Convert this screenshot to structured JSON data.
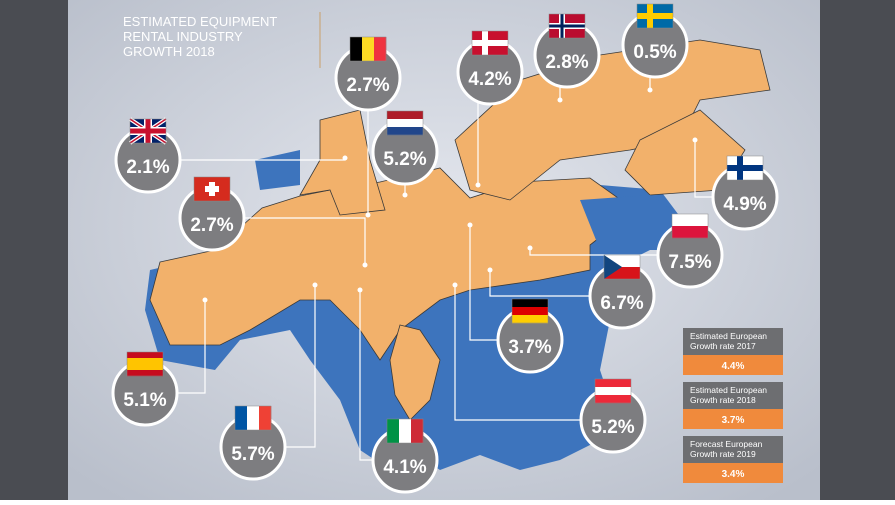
{
  "title": {
    "lines": [
      "ESTIMATED EQUIPMENT",
      "RENTAL INDUSTRY",
      "GROWTH 2018"
    ]
  },
  "markers": [
    {
      "value": "2.7%"
    },
    {
      "value": "4.2%"
    },
    {
      "value": "2.8%"
    },
    {
      "value": "0.5%"
    },
    {
      "value": "2.1%"
    },
    {
      "value": "5.2%"
    },
    {
      "value": "2.7%"
    },
    {
      "value": "4.9%"
    },
    {
      "value": "7.5%"
    },
    {
      "value": "6.7%"
    },
    {
      "value": "3.7%"
    },
    {
      "value": "5.1%"
    },
    {
      "value": "5.7%"
    },
    {
      "value": "4.1%"
    },
    {
      "value": "5.2%"
    }
  ],
  "summary": [
    {
      "label": [
        "Estimated European",
        "Growth rate 2017"
      ],
      "value": "4.4%"
    },
    {
      "label": [
        "Estimated European",
        "Growth rate 2018"
      ],
      "value": "3.7%"
    },
    {
      "label": [
        "Forecast European",
        "Growth rate 2019"
      ],
      "value": "3.4%"
    }
  ]
}
